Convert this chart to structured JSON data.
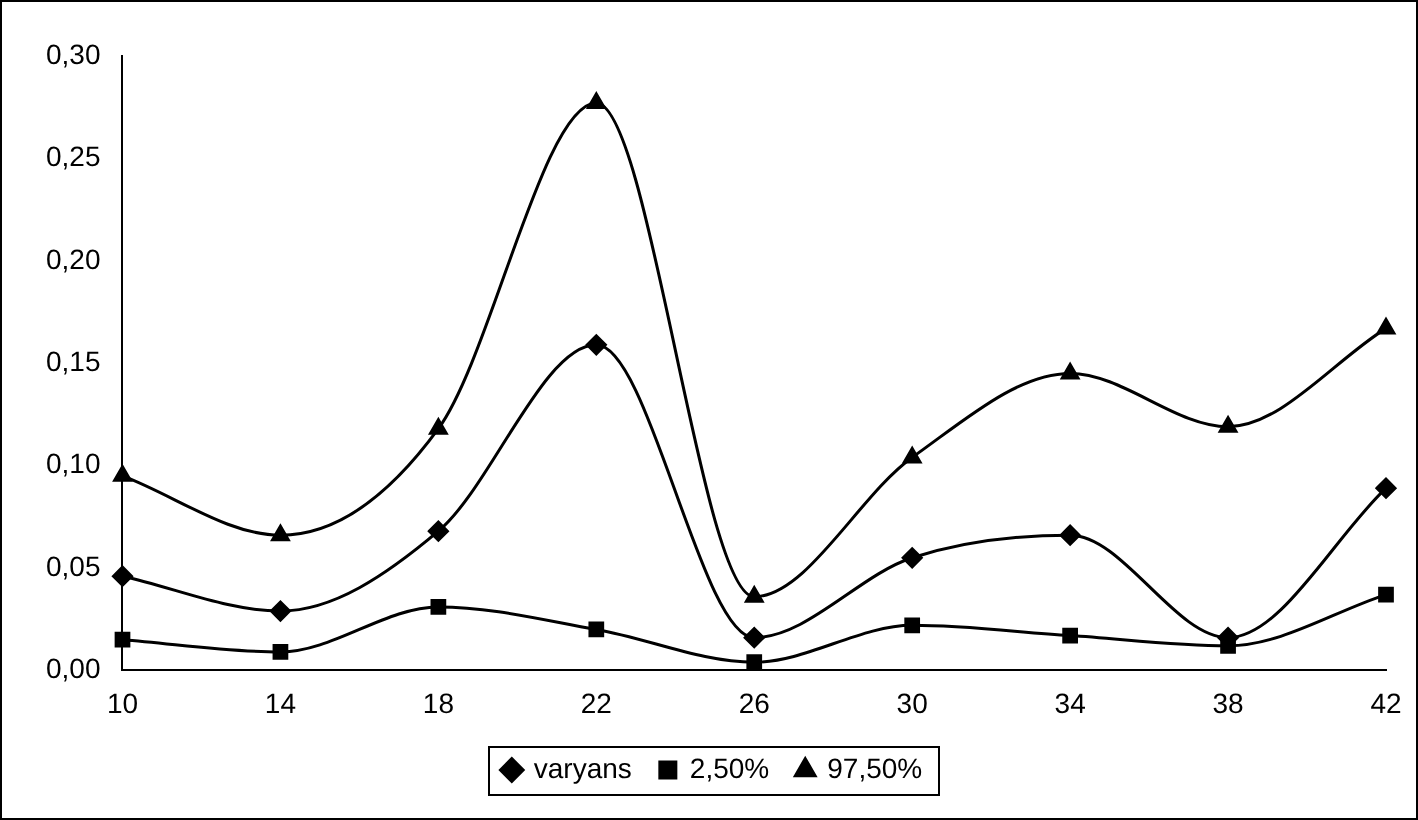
{
  "chart_data": {
    "type": "line",
    "categories": [
      "10",
      "14",
      "18",
      "22",
      "26",
      "30",
      "34",
      "38",
      "42"
    ],
    "series": [
      {
        "name": "varyans",
        "color": "#000000",
        "marker": "diamond",
        "values": [
          0.046,
          0.029,
          0.068,
          0.159,
          0.016,
          0.055,
          0.066,
          0.016,
          0.089
        ]
      },
      {
        "name": "2,50%",
        "color": "#000000",
        "marker": "square",
        "values": [
          0.015,
          0.009,
          0.031,
          0.02,
          0.004,
          0.022,
          0.017,
          0.012,
          0.037
        ]
      },
      {
        "name": "97,50%",
        "color": "#000000",
        "marker": "triangle",
        "values": [
          0.095,
          0.066,
          0.118,
          0.277,
          0.036,
          0.104,
          0.145,
          0.119,
          0.167
        ]
      }
    ],
    "ylim": [
      0,
      0.3
    ],
    "yticks": [
      {
        "value": 0,
        "label": "0,00"
      },
      {
        "value": 0.05,
        "label": "0,05"
      },
      {
        "value": 0.1,
        "label": "0,10"
      },
      {
        "value": 0.15,
        "label": "0,15"
      },
      {
        "value": 0.2,
        "label": "0,20"
      },
      {
        "value": 0.25,
        "label": "0,25"
      },
      {
        "value": 0.3,
        "label": "0,30"
      }
    ],
    "grid": false,
    "legend": "bottom",
    "line_style": "solid"
  }
}
